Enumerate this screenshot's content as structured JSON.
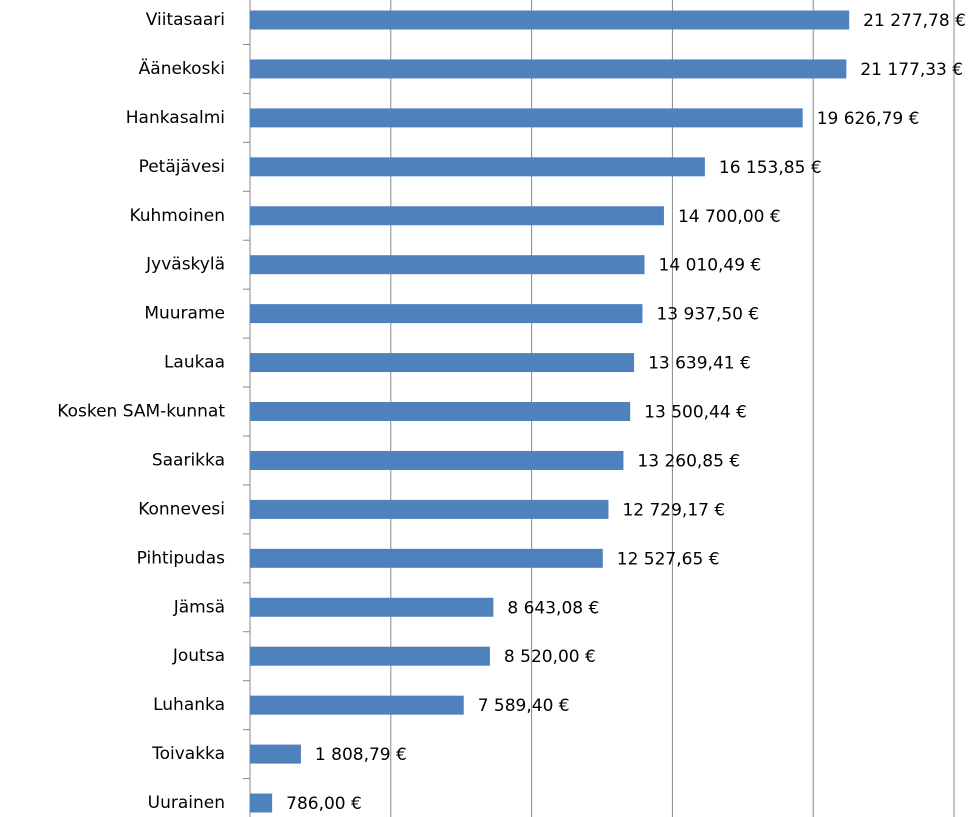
{
  "chart_data": {
    "type": "barh",
    "categories": [
      "Viitasaari",
      "Äänekoski",
      "Hankasalmi",
      "Petäjävesi",
      "Kuhmoinen",
      "Jyväskylä",
      "Muurame",
      "Laukaa",
      "Kosken SAM-kunnat",
      "Saarikka",
      "Konnevesi",
      "Pihtipudas",
      "Jämsä",
      "Joutsa",
      "Luhanka",
      "Toivakka",
      "Uurainen"
    ],
    "values": [
      21277.78,
      21177.33,
      19626.79,
      16153.85,
      14700.0,
      14010.49,
      13937.5,
      13639.41,
      13500.44,
      13260.85,
      12729.17,
      12527.65,
      8643.08,
      8520.0,
      7589.4,
      1808.79,
      786.0
    ],
    "value_labels": [
      "21 277,78 €",
      "21 177,33 €",
      "19 626,79 €",
      "16 153,85 €",
      "14 700,00 €",
      "14 010,49 €",
      "13 937,50 €",
      "13 639,41 €",
      "13 500,44 €",
      "13 260,85 €",
      "12 729,17 €",
      "12 527,65 €",
      "8 643,08 €",
      "8 520,00 €",
      "7 589,40 €",
      "1 808,79 €",
      "786,00 €"
    ],
    "color": "#4f81bd",
    "xlim": [
      0,
      25000
    ],
    "xticks": [
      0,
      5000,
      10000,
      15000,
      20000,
      25000
    ],
    "grid": true
  }
}
